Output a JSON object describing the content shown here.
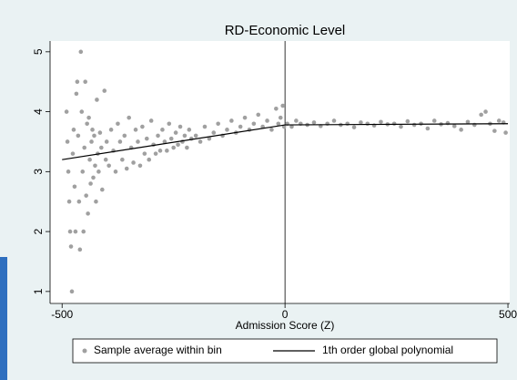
{
  "chart_data": {
    "type": "scatter",
    "title": "RD-Economic Level",
    "xlabel": "Admission Score (Z)",
    "xlim": [
      -527,
      504
    ],
    "ylim": [
      0.8,
      5.18
    ],
    "xticks": [
      -500,
      0,
      500
    ],
    "yticks": [
      1,
      2,
      3,
      4,
      5
    ],
    "grid": false,
    "legend": "bottom",
    "cutoff": 0,
    "series": [
      {
        "name": "Sample average within bin",
        "type": "scatter",
        "color": "#a0a0a0",
        "x": [
          -490,
          -488,
          -486,
          -484,
          -482,
          -480,
          -478,
          -476,
          -474,
          -472,
          -470,
          -468,
          -466,
          -464,
          -462,
          -460,
          -458,
          -456,
          -454,
          -452,
          -450,
          -448,
          -446,
          -444,
          -442,
          -440,
          -438,
          -436,
          -434,
          -432,
          -430,
          -428,
          -426,
          -424,
          -422,
          -420,
          -418,
          -415,
          -412,
          -410,
          -405,
          -402,
          -400,
          -395,
          -390,
          -385,
          -380,
          -375,
          -370,
          -365,
          -360,
          -355,
          -350,
          -345,
          -340,
          -335,
          -330,
          -325,
          -320,
          -315,
          -310,
          -305,
          -300,
          -295,
          -290,
          -285,
          -280,
          -275,
          -270,
          -265,
          -260,
          -255,
          -250,
          -245,
          -240,
          -235,
          -230,
          -225,
          -220,
          -215,
          -210,
          -200,
          -190,
          -180,
          -170,
          -160,
          -150,
          -140,
          -130,
          -120,
          -110,
          -100,
          -90,
          -80,
          -70,
          -60,
          -50,
          -40,
          -30,
          -20,
          -15,
          -10,
          -5,
          -2,
          5,
          15,
          25,
          35,
          50,
          65,
          80,
          95,
          110,
          125,
          140,
          155,
          170,
          185,
          200,
          215,
          230,
          245,
          260,
          275,
          290,
          305,
          320,
          335,
          350,
          365,
          380,
          395,
          410,
          425,
          440,
          450,
          460,
          470,
          480,
          490,
          495
        ],
        "y": [
          4.0,
          3.5,
          3.0,
          2.5,
          2.0,
          1.75,
          1.0,
          3.3,
          3.7,
          2.75,
          2.0,
          4.3,
          4.5,
          3.6,
          2.5,
          1.7,
          5.0,
          4.0,
          3.0,
          2.0,
          3.4,
          4.5,
          2.6,
          3.8,
          2.3,
          3.9,
          3.2,
          2.8,
          3.5,
          3.7,
          2.9,
          3.6,
          3.1,
          2.5,
          4.2,
          3.3,
          3.0,
          3.65,
          3.4,
          2.7,
          4.35,
          3.2,
          3.5,
          3.1,
          3.7,
          3.35,
          3.0,
          3.8,
          3.5,
          3.2,
          3.6,
          3.05,
          3.9,
          3.4,
          3.15,
          3.7,
          3.5,
          3.1,
          3.75,
          3.3,
          3.55,
          3.2,
          3.85,
          3.45,
          3.3,
          3.6,
          3.35,
          3.7,
          3.5,
          3.35,
          3.8,
          3.55,
          3.4,
          3.65,
          3.45,
          3.75,
          3.5,
          3.6,
          3.4,
          3.7,
          3.55,
          3.6,
          3.5,
          3.75,
          3.55,
          3.65,
          3.8,
          3.6,
          3.7,
          3.85,
          3.65,
          3.75,
          3.9,
          3.7,
          3.8,
          3.95,
          3.75,
          3.85,
          3.7,
          4.05,
          3.8,
          3.9,
          4.1,
          3.75,
          3.8,
          3.75,
          3.85,
          3.8,
          3.78,
          3.82,
          3.76,
          3.8,
          3.85,
          3.78,
          3.8,
          3.74,
          3.82,
          3.8,
          3.77,
          3.83,
          3.79,
          3.8,
          3.75,
          3.84,
          3.78,
          3.8,
          3.72,
          3.85,
          3.79,
          3.81,
          3.76,
          3.7,
          3.83,
          3.78,
          3.95,
          4.0,
          3.8,
          3.68,
          3.85,
          3.82,
          3.65
        ]
      },
      {
        "name": "1th order global polynomial",
        "type": "line",
        "color": "#000000",
        "x": [
          -500,
          0,
          500
        ],
        "y": [
          3.2,
          3.78,
          3.8
        ]
      }
    ]
  }
}
